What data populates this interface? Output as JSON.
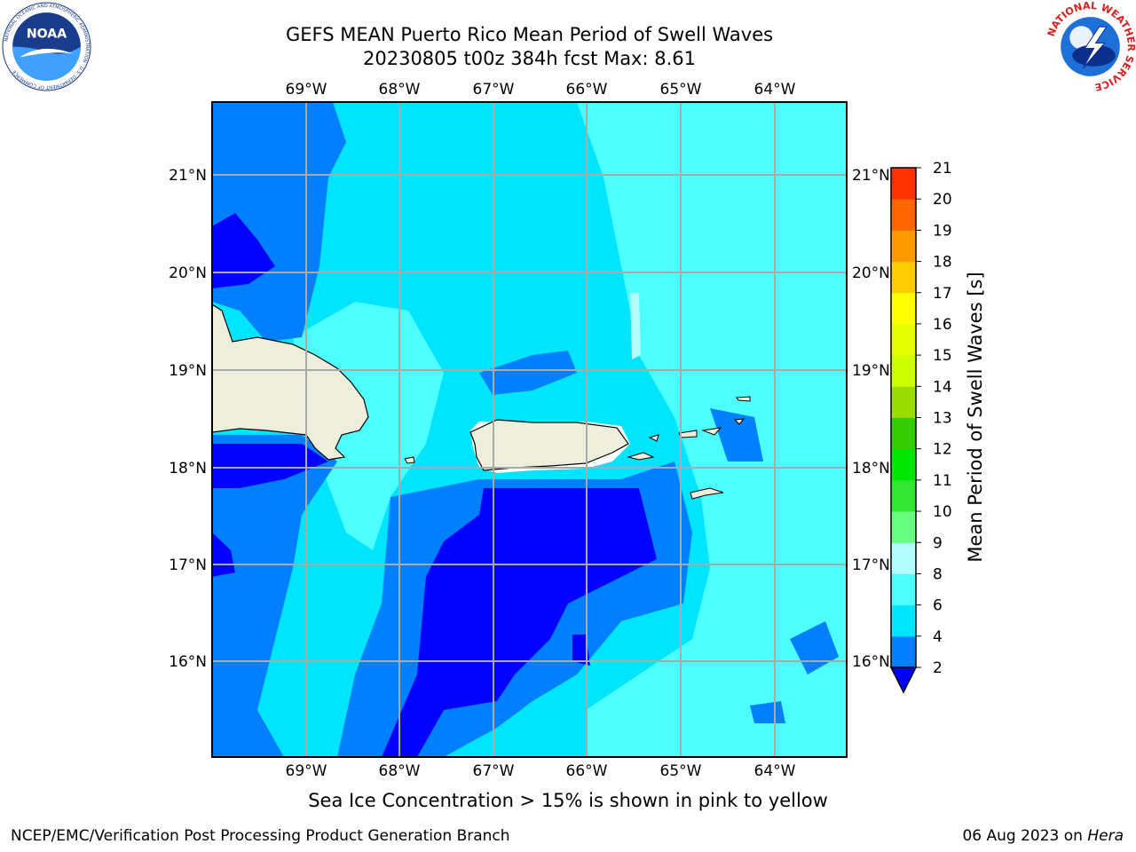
{
  "header": {
    "title": "GEFS MEAN Puerto Rico Mean Period of Swell Waves",
    "subtitle": "20230805 t00z 384h fcst   Max: 8.61"
  },
  "logos": {
    "left": "NOAA",
    "left_ring_text": "NATIONAL OCEANIC AND ATMOSPHERIC ADMINISTRATION · U.S. DEPARTMENT OF COMMERCE",
    "right_ring_text": "NATIONAL WEATHER SERVICE"
  },
  "map": {
    "lon_labels": [
      "69°W",
      "68°W",
      "67°W",
      "66°W",
      "65°W",
      "64°W"
    ],
    "lat_labels": [
      "21°N",
      "20°N",
      "19°N",
      "18°N",
      "17°N",
      "16°N"
    ],
    "lon_range": [
      -70.0,
      -63.3
    ],
    "lat_range": [
      15.0,
      21.75
    ],
    "gridlines": true
  },
  "colorbar": {
    "label": "Mean Period of Swell Waves [s]",
    "ticks": [
      "2",
      "4",
      "6",
      "8",
      "9",
      "10",
      "11",
      "12",
      "13",
      "14",
      "15",
      "16",
      "17",
      "18",
      "19",
      "20",
      "21"
    ],
    "colors": [
      "#0000ff",
      "#0080ff",
      "#00e5ff",
      "#4dffff",
      "#b3ffff",
      "#66ff80",
      "#33e633",
      "#00e600",
      "#33cc00",
      "#99dd00",
      "#ccff00",
      "#e6ff00",
      "#ffff00",
      "#ffcc00",
      "#ff9900",
      "#ff6600",
      "#ff3300",
      "#ff0000"
    ],
    "extend_low_color": "#0000ff"
  },
  "caption": "Sea Ice Concentration > 15% is shown in pink to yellow",
  "footer": {
    "left": "NCEP/EMC/Verification Post Processing Product Generation Branch",
    "date": "06 Aug 2023 on",
    "machine": "Hera"
  }
}
